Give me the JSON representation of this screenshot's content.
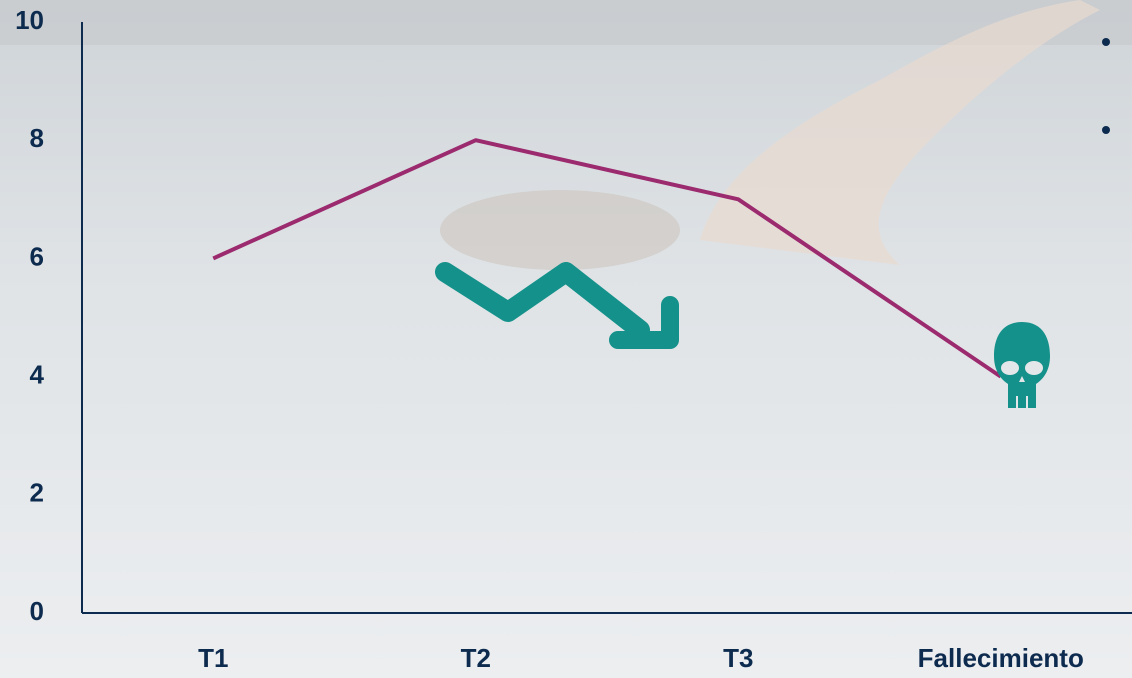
{
  "chart_data": {
    "type": "line",
    "categories": [
      "T1",
      "T2",
      "T3",
      "Fallecimiento"
    ],
    "values": [
      6,
      8,
      7,
      4
    ],
    "color": "#9b2a6e",
    "ylim": [
      0,
      10
    ],
    "yticks": [
      0,
      2,
      4,
      6,
      8,
      10
    ],
    "grid": false
  }
}
